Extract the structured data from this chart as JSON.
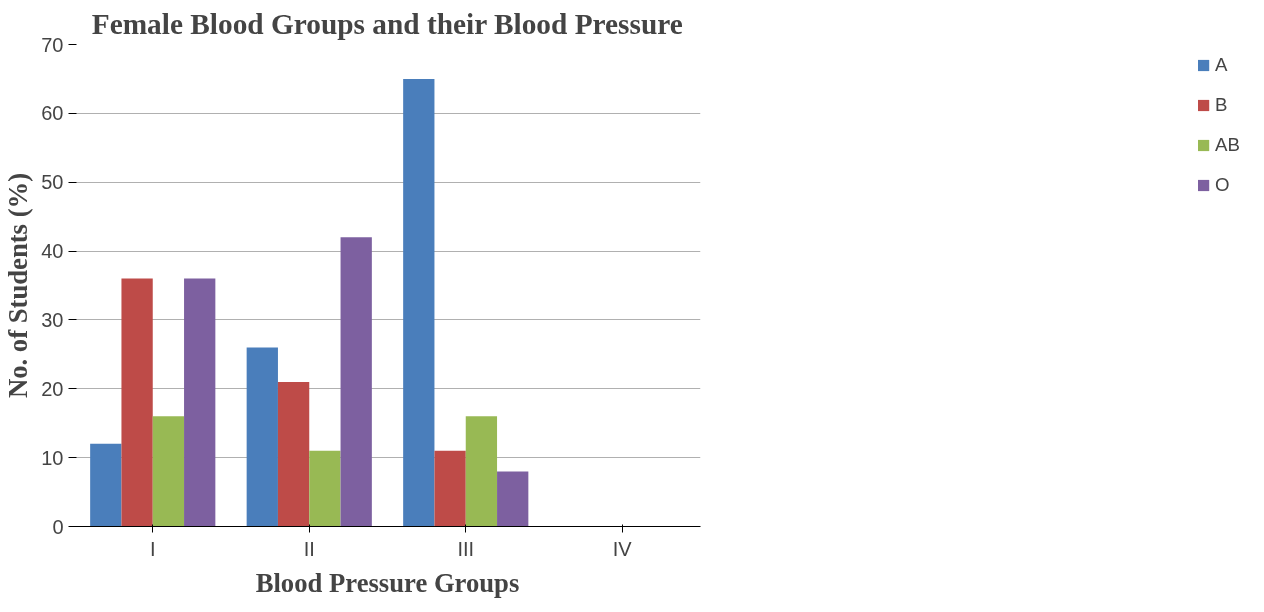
{
  "chart_data": {
    "type": "bar",
    "title": "Female Blood Groups and their Blood Pressure",
    "xlabel": "Blood Pressure Groups",
    "ylabel": "No. of Students (%)",
    "categories": [
      "I",
      "II",
      "III",
      "IV"
    ],
    "series": [
      {
        "name": "A",
        "color": "#4a7ebb",
        "values": [
          12,
          26,
          65,
          0
        ]
      },
      {
        "name": "B",
        "color": "#be4b48",
        "values": [
          36,
          21,
          11,
          0
        ]
      },
      {
        "name": "AB",
        "color": "#98b954",
        "values": [
          16,
          11,
          16,
          0
        ]
      },
      {
        "name": "O",
        "color": "#7d60a0",
        "values": [
          36,
          42,
          8,
          0
        ]
      }
    ],
    "ylim": [
      0,
      70
    ],
    "yticks": [
      0,
      10,
      20,
      30,
      40,
      50,
      60,
      70
    ],
    "grid": "y",
    "legend": "right"
  }
}
